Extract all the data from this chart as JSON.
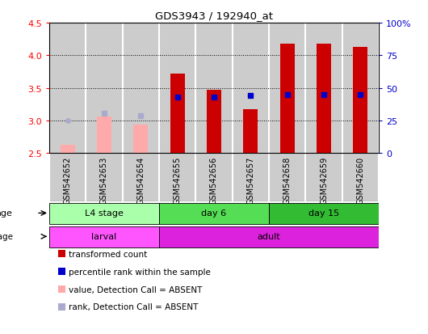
{
  "title": "GDS3943 / 192940_at",
  "samples": [
    "GSM542652",
    "GSM542653",
    "GSM542654",
    "GSM542655",
    "GSM542656",
    "GSM542657",
    "GSM542658",
    "GSM542659",
    "GSM542660"
  ],
  "transformed_count": [
    null,
    null,
    null,
    3.72,
    3.47,
    3.17,
    4.18,
    4.18,
    4.13
  ],
  "absent_value": [
    2.63,
    3.06,
    2.94,
    null,
    null,
    null,
    null,
    null,
    null
  ],
  "absent_rank_val": [
    null,
    3.11,
    3.08,
    null,
    null,
    null,
    null,
    null,
    null
  ],
  "absent_rank_dot": 3.0,
  "present_rank_pct": [
    null,
    null,
    null,
    43,
    43,
    44,
    45,
    45,
    45
  ],
  "ylim_left": [
    2.5,
    4.5
  ],
  "ylim_right": [
    0,
    100
  ],
  "yticks_left": [
    2.5,
    3.0,
    3.5,
    4.0,
    4.5
  ],
  "yticks_right": [
    0,
    25,
    50,
    75,
    100
  ],
  "ytick_right_labels": [
    "0",
    "25",
    "50",
    "75",
    "100%"
  ],
  "bar_width": 0.4,
  "color_red": "#cc0000",
  "color_pink": "#ffaaaa",
  "color_blue": "#0000cc",
  "color_lightblue": "#aaaacc",
  "color_gray_col": "#cccccc",
  "color_white": "#ffffff",
  "age_groups": [
    {
      "label": "L4 stage",
      "start": 0,
      "end": 3,
      "color": "#aaffaa"
    },
    {
      "label": "day 6",
      "start": 3,
      "end": 6,
      "color": "#55dd55"
    },
    {
      "label": "day 15",
      "start": 6,
      "end": 9,
      "color": "#33bb33"
    }
  ],
  "dev_groups": [
    {
      "label": "larval",
      "start": 0,
      "end": 3,
      "color": "#ff55ff"
    },
    {
      "label": "adult",
      "start": 3,
      "end": 9,
      "color": "#dd22dd"
    }
  ],
  "legend": [
    {
      "label": "transformed count",
      "color": "#cc0000"
    },
    {
      "label": "percentile rank within the sample",
      "color": "#0000cc"
    },
    {
      "label": "value, Detection Call = ABSENT",
      "color": "#ffaaaa"
    },
    {
      "label": "rank, Detection Call = ABSENT",
      "color": "#aaaacc"
    }
  ]
}
